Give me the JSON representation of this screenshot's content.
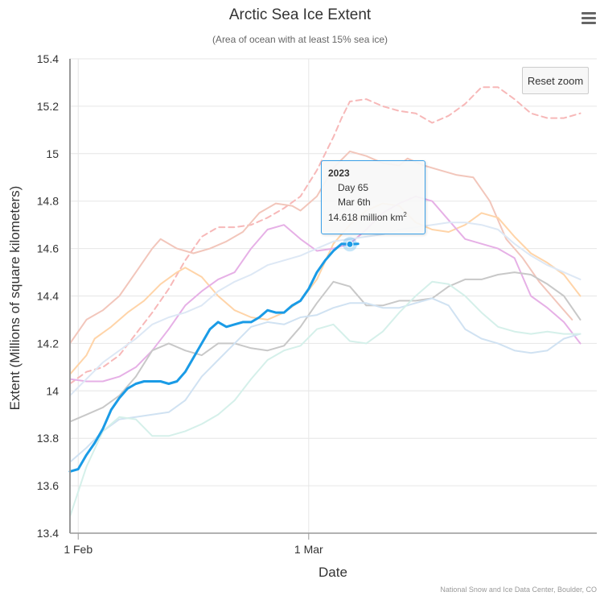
{
  "chart_data": {
    "type": "line",
    "title": "Arctic Sea Ice Extent",
    "subtitle": "(Area of ocean with at least 15% sea ice)",
    "xlabel": "Date",
    "ylabel": "Extent (Millions of square kilometers)",
    "x_unit": "day of year",
    "xlim": [
      31,
      95
    ],
    "ylim": [
      13.4,
      15.4
    ],
    "x_ticks": [
      {
        "day": 32,
        "label": "1 Feb"
      },
      {
        "day": 60,
        "label": "1 Mar"
      }
    ],
    "y_ticks": [
      13.4,
      13.6,
      13.8,
      14,
      14.2,
      14.4,
      14.6,
      14.8,
      15,
      15.2,
      15.4
    ],
    "grid": true,
    "series": [
      {
        "name": "2023",
        "color": "#1a9be6",
        "style": "solid",
        "width": 3,
        "points": [
          [
            31,
            13.66
          ],
          [
            32,
            13.67
          ],
          [
            33,
            13.73
          ],
          [
            34,
            13.78
          ],
          [
            35,
            13.84
          ],
          [
            36,
            13.92
          ],
          [
            37,
            13.97
          ],
          [
            38,
            14.01
          ],
          [
            39,
            14.03
          ],
          [
            40,
            14.04
          ],
          [
            41,
            14.04
          ],
          [
            42,
            14.04
          ],
          [
            43,
            14.03
          ],
          [
            44,
            14.04
          ],
          [
            45,
            14.08
          ],
          [
            46,
            14.14
          ],
          [
            47,
            14.2
          ],
          [
            48,
            14.26
          ],
          [
            49,
            14.29
          ],
          [
            50,
            14.27
          ],
          [
            51,
            14.28
          ],
          [
            52,
            14.29
          ],
          [
            53,
            14.29
          ],
          [
            54,
            14.31
          ],
          [
            55,
            14.34
          ],
          [
            56,
            14.33
          ],
          [
            57,
            14.33
          ],
          [
            58,
            14.36
          ],
          [
            59,
            14.38
          ],
          [
            60,
            14.43
          ],
          [
            61,
            14.5
          ],
          [
            62,
            14.55
          ],
          [
            63,
            14.59
          ],
          [
            64,
            14.62
          ],
          [
            65,
            14.618
          ],
          [
            66,
            14.62
          ]
        ]
      },
      {
        "color": "#f7b8b8",
        "style": "dash",
        "width": 2,
        "points": [
          [
            31,
            14.03
          ],
          [
            33,
            14.08
          ],
          [
            35,
            14.1
          ],
          [
            37,
            14.15
          ],
          [
            39,
            14.24
          ],
          [
            41,
            14.33
          ],
          [
            43,
            14.43
          ],
          [
            45,
            14.55
          ],
          [
            47,
            14.65
          ],
          [
            49,
            14.69
          ],
          [
            51,
            14.69
          ],
          [
            53,
            14.7
          ],
          [
            55,
            14.73
          ],
          [
            57,
            14.77
          ],
          [
            59,
            14.82
          ],
          [
            61,
            14.93
          ],
          [
            63,
            15.07
          ],
          [
            64,
            15.15
          ],
          [
            65,
            15.22
          ],
          [
            67,
            15.23
          ],
          [
            69,
            15.2
          ],
          [
            71,
            15.18
          ],
          [
            73,
            15.17
          ],
          [
            75,
            15.13
          ],
          [
            77,
            15.16
          ],
          [
            79,
            15.21
          ],
          [
            81,
            15.28
          ],
          [
            83,
            15.28
          ],
          [
            85,
            15.23
          ],
          [
            87,
            15.17
          ],
          [
            89,
            15.15
          ],
          [
            91,
            15.15
          ],
          [
            93,
            15.17
          ]
        ]
      },
      {
        "color": "#f2c6bb",
        "style": "solid",
        "width": 2,
        "points": [
          [
            31,
            14.2
          ],
          [
            33,
            14.3
          ],
          [
            35,
            14.34
          ],
          [
            37,
            14.4
          ],
          [
            39,
            14.5
          ],
          [
            41,
            14.6
          ],
          [
            42,
            14.64
          ],
          [
            44,
            14.6
          ],
          [
            46,
            14.58
          ],
          [
            48,
            14.6
          ],
          [
            50,
            14.63
          ],
          [
            52,
            14.67
          ],
          [
            54,
            14.75
          ],
          [
            56,
            14.79
          ],
          [
            58,
            14.78
          ],
          [
            59,
            14.76
          ],
          [
            61,
            14.82
          ],
          [
            63,
            14.94
          ],
          [
            65,
            15.01
          ],
          [
            67,
            14.99
          ],
          [
            69,
            14.96
          ],
          [
            71,
            14.95
          ],
          [
            72,
            14.98
          ],
          [
            74,
            14.95
          ],
          [
            76,
            14.93
          ],
          [
            78,
            14.91
          ],
          [
            80,
            14.9
          ],
          [
            82,
            14.8
          ],
          [
            84,
            14.64
          ],
          [
            86,
            14.56
          ],
          [
            88,
            14.46
          ],
          [
            90,
            14.38
          ],
          [
            92,
            14.3
          ]
        ]
      },
      {
        "color": "#ffd4a8",
        "style": "solid",
        "width": 2,
        "points": [
          [
            31,
            14.07
          ],
          [
            33,
            14.15
          ],
          [
            34,
            14.22
          ],
          [
            36,
            14.27
          ],
          [
            38,
            14.33
          ],
          [
            40,
            14.38
          ],
          [
            42,
            14.45
          ],
          [
            44,
            14.5
          ],
          [
            45,
            14.52
          ],
          [
            47,
            14.48
          ],
          [
            49,
            14.4
          ],
          [
            51,
            14.34
          ],
          [
            53,
            14.31
          ],
          [
            55,
            14.3
          ],
          [
            57,
            14.33
          ],
          [
            59,
            14.38
          ],
          [
            61,
            14.47
          ],
          [
            63,
            14.62
          ],
          [
            65,
            14.7
          ],
          [
            67,
            14.76
          ],
          [
            69,
            14.79
          ],
          [
            71,
            14.78
          ],
          [
            73,
            14.71
          ],
          [
            75,
            14.68
          ],
          [
            77,
            14.67
          ],
          [
            79,
            14.7
          ],
          [
            81,
            14.75
          ],
          [
            83,
            14.73
          ],
          [
            85,
            14.65
          ],
          [
            87,
            14.58
          ],
          [
            89,
            14.54
          ],
          [
            91,
            14.49
          ],
          [
            93,
            14.4
          ]
        ]
      },
      {
        "color": "#e6b0e6",
        "style": "solid",
        "width": 2,
        "points": [
          [
            31,
            14.05
          ],
          [
            33,
            14.04
          ],
          [
            35,
            14.04
          ],
          [
            37,
            14.06
          ],
          [
            39,
            14.1
          ],
          [
            41,
            14.17
          ],
          [
            43,
            14.26
          ],
          [
            45,
            14.36
          ],
          [
            47,
            14.42
          ],
          [
            49,
            14.47
          ],
          [
            51,
            14.5
          ],
          [
            53,
            14.6
          ],
          [
            55,
            14.68
          ],
          [
            57,
            14.7
          ],
          [
            59,
            14.64
          ],
          [
            61,
            14.59
          ],
          [
            63,
            14.6
          ],
          [
            65,
            14.62
          ],
          [
            67,
            14.68
          ],
          [
            69,
            14.75
          ],
          [
            71,
            14.79
          ],
          [
            73,
            14.82
          ],
          [
            75,
            14.8
          ],
          [
            77,
            14.72
          ],
          [
            79,
            14.64
          ],
          [
            81,
            14.62
          ],
          [
            83,
            14.6
          ],
          [
            85,
            14.56
          ],
          [
            87,
            14.4
          ],
          [
            89,
            14.35
          ],
          [
            91,
            14.29
          ],
          [
            93,
            14.2
          ]
        ]
      },
      {
        "color": "#c8c8c8",
        "style": "solid",
        "width": 2,
        "points": [
          [
            31,
            13.87
          ],
          [
            33,
            13.9
          ],
          [
            35,
            13.93
          ],
          [
            37,
            13.98
          ],
          [
            39,
            14.06
          ],
          [
            41,
            14.17
          ],
          [
            43,
            14.2
          ],
          [
            45,
            14.17
          ],
          [
            47,
            14.15
          ],
          [
            49,
            14.2
          ],
          [
            51,
            14.2
          ],
          [
            53,
            14.18
          ],
          [
            55,
            14.17
          ],
          [
            57,
            14.19
          ],
          [
            59,
            14.27
          ],
          [
            61,
            14.37
          ],
          [
            63,
            14.46
          ],
          [
            65,
            14.44
          ],
          [
            67,
            14.36
          ],
          [
            69,
            14.36
          ],
          [
            71,
            14.38
          ],
          [
            73,
            14.38
          ],
          [
            75,
            14.39
          ],
          [
            77,
            14.44
          ],
          [
            79,
            14.47
          ],
          [
            81,
            14.47
          ],
          [
            83,
            14.49
          ],
          [
            85,
            14.5
          ],
          [
            87,
            14.49
          ],
          [
            89,
            14.45
          ],
          [
            91,
            14.4
          ],
          [
            93,
            14.3
          ]
        ]
      },
      {
        "color": "#dde8f5",
        "style": "solid",
        "width": 2,
        "points": [
          [
            31,
            13.98
          ],
          [
            33,
            14.05
          ],
          [
            35,
            14.12
          ],
          [
            37,
            14.17
          ],
          [
            39,
            14.22
          ],
          [
            41,
            14.28
          ],
          [
            43,
            14.31
          ],
          [
            45,
            14.33
          ],
          [
            47,
            14.36
          ],
          [
            49,
            14.42
          ],
          [
            51,
            14.46
          ],
          [
            53,
            14.49
          ],
          [
            55,
            14.53
          ],
          [
            57,
            14.55
          ],
          [
            59,
            14.57
          ],
          [
            61,
            14.6
          ],
          [
            63,
            14.63
          ],
          [
            65,
            14.64
          ],
          [
            67,
            14.65
          ],
          [
            69,
            14.66
          ],
          [
            71,
            14.68
          ],
          [
            73,
            14.69
          ],
          [
            75,
            14.7
          ],
          [
            77,
            14.71
          ],
          [
            79,
            14.71
          ],
          [
            81,
            14.7
          ],
          [
            83,
            14.68
          ],
          [
            85,
            14.62
          ],
          [
            87,
            14.57
          ],
          [
            89,
            14.53
          ],
          [
            91,
            14.5
          ],
          [
            93,
            14.47
          ]
        ]
      },
      {
        "color": "#d0e2f2",
        "style": "solid",
        "width": 2,
        "points": [
          [
            31,
            13.7
          ],
          [
            33,
            13.76
          ],
          [
            35,
            13.83
          ],
          [
            37,
            13.88
          ],
          [
            39,
            13.89
          ],
          [
            41,
            13.9
          ],
          [
            43,
            13.91
          ],
          [
            45,
            13.96
          ],
          [
            47,
            14.06
          ],
          [
            49,
            14.13
          ],
          [
            51,
            14.2
          ],
          [
            53,
            14.27
          ],
          [
            55,
            14.29
          ],
          [
            57,
            14.28
          ],
          [
            59,
            14.31
          ],
          [
            61,
            14.32
          ],
          [
            63,
            14.35
          ],
          [
            65,
            14.37
          ],
          [
            67,
            14.37
          ],
          [
            69,
            14.35
          ],
          [
            71,
            14.35
          ],
          [
            73,
            14.37
          ],
          [
            75,
            14.39
          ],
          [
            77,
            14.36
          ],
          [
            79,
            14.26
          ],
          [
            81,
            14.22
          ],
          [
            83,
            14.2
          ],
          [
            85,
            14.17
          ],
          [
            87,
            14.16
          ],
          [
            89,
            14.17
          ],
          [
            91,
            14.22
          ],
          [
            93,
            14.24
          ]
        ]
      },
      {
        "color": "#d5f0ea",
        "style": "solid",
        "width": 2,
        "points": [
          [
            31,
            13.47
          ],
          [
            33,
            13.68
          ],
          [
            35,
            13.83
          ],
          [
            37,
            13.89
          ],
          [
            39,
            13.88
          ],
          [
            41,
            13.81
          ],
          [
            43,
            13.81
          ],
          [
            45,
            13.83
          ],
          [
            47,
            13.86
          ],
          [
            49,
            13.9
          ],
          [
            51,
            13.96
          ],
          [
            53,
            14.05
          ],
          [
            55,
            14.13
          ],
          [
            57,
            14.17
          ],
          [
            59,
            14.19
          ],
          [
            61,
            14.26
          ],
          [
            63,
            14.28
          ],
          [
            65,
            14.21
          ],
          [
            67,
            14.2
          ],
          [
            69,
            14.25
          ],
          [
            71,
            14.33
          ],
          [
            73,
            14.4
          ],
          [
            75,
            14.46
          ],
          [
            77,
            14.45
          ],
          [
            79,
            14.4
          ],
          [
            81,
            14.33
          ],
          [
            83,
            14.27
          ],
          [
            85,
            14.25
          ],
          [
            87,
            14.24
          ],
          [
            89,
            14.25
          ],
          [
            91,
            14.24
          ],
          [
            93,
            14.24
          ]
        ]
      }
    ],
    "highlight": {
      "series": "2023",
      "x": 65,
      "y": 14.618
    }
  },
  "tooltip": {
    "year": "2023",
    "day": "Day 65",
    "date": "Mar 6th",
    "value": "14.618 million km",
    "unit_sup": "2"
  },
  "reset_zoom_label": "Reset zoom",
  "credits": "National Snow and Ice Data Center, Boulder, CO",
  "menu_icon": "hamburger-menu-icon"
}
